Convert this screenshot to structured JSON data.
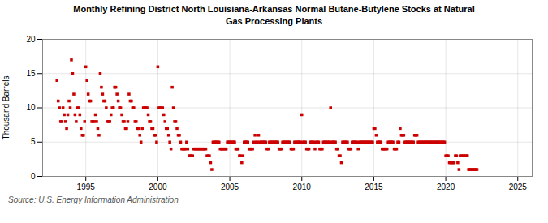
{
  "chart_data": {
    "type": "scatter",
    "title": "Monthly Refining District North Louisiana-Arkansas Normal Butane-Butylene Stocks at Natural\nGas Processing Plants",
    "y_label": "Thousand Barrels",
    "annotations": [
      "Source: U.S. Energy Information Administration"
    ],
    "color": "#cc0000",
    "marker": "square",
    "grid": true,
    "xlim": [
      1992.0,
      2026.0
    ],
    "ylim": [
      0,
      20
    ],
    "xticks": [
      1995,
      2000,
      2005,
      2010,
      2015,
      2020,
      2025
    ],
    "yticks": [
      0,
      5,
      10,
      15,
      20
    ],
    "x": [
      1993.0,
      1993.083,
      1993.167,
      1993.25,
      1993.333,
      1993.417,
      1993.5,
      1993.583,
      1993.667,
      1993.75,
      1993.833,
      1993.917,
      1994.0,
      1994.083,
      1994.167,
      1994.25,
      1994.333,
      1994.417,
      1994.5,
      1994.583,
      1994.667,
      1994.75,
      1994.833,
      1994.917,
      1995.0,
      1995.083,
      1995.167,
      1995.25,
      1995.333,
      1995.417,
      1995.5,
      1995.583,
      1995.667,
      1995.75,
      1995.833,
      1995.917,
      1996.0,
      1996.083,
      1996.167,
      1996.25,
      1996.333,
      1996.417,
      1996.5,
      1996.583,
      1996.667,
      1996.75,
      1996.833,
      1996.917,
      1997.0,
      1997.083,
      1997.167,
      1997.25,
      1997.333,
      1997.417,
      1997.5,
      1997.583,
      1997.667,
      1997.75,
      1997.833,
      1997.917,
      1998.0,
      1998.083,
      1998.167,
      1998.25,
      1998.333,
      1998.417,
      1998.5,
      1998.583,
      1998.667,
      1998.75,
      1998.833,
      1998.917,
      1999.0,
      1999.083,
      1999.167,
      1999.25,
      1999.333,
      1999.417,
      1999.5,
      1999.583,
      1999.667,
      1999.75,
      1999.833,
      1999.917,
      2000.0,
      2000.083,
      2000.167,
      2000.25,
      2000.333,
      2000.417,
      2000.5,
      2000.583,
      2000.667,
      2000.75,
      2000.833,
      2000.917,
      2001.0,
      2001.083,
      2001.167,
      2001.25,
      2001.333,
      2001.417,
      2001.5,
      2001.583,
      2001.667,
      2001.75,
      2001.833,
      2001.917,
      2002.0,
      2002.083,
      2002.167,
      2002.25,
      2002.333,
      2002.417,
      2002.5,
      2002.583,
      2002.667,
      2002.75,
      2002.833,
      2002.917,
      2003.0,
      2003.083,
      2003.167,
      2003.25,
      2003.333,
      2003.417,
      2003.5,
      2003.583,
      2003.667,
      2003.75,
      2003.833,
      2003.917,
      2004.0,
      2004.083,
      2004.167,
      2004.25,
      2004.333,
      2004.417,
      2004.5,
      2004.583,
      2004.667,
      2004.75,
      2004.833,
      2004.917,
      2005.0,
      2005.083,
      2005.167,
      2005.25,
      2005.333,
      2005.417,
      2005.5,
      2005.583,
      2005.667,
      2005.75,
      2005.833,
      2005.917,
      2006.0,
      2006.083,
      2006.167,
      2006.25,
      2006.333,
      2006.417,
      2006.5,
      2006.583,
      2006.667,
      2006.75,
      2006.833,
      2006.917,
      2007.0,
      2007.083,
      2007.167,
      2007.25,
      2007.333,
      2007.417,
      2007.5,
      2007.583,
      2007.667,
      2007.75,
      2007.833,
      2007.917,
      2008.0,
      2008.083,
      2008.167,
      2008.25,
      2008.333,
      2008.417,
      2008.5,
      2008.583,
      2008.667,
      2008.75,
      2008.833,
      2008.917,
      2009.0,
      2009.083,
      2009.167,
      2009.25,
      2009.333,
      2009.417,
      2009.5,
      2009.583,
      2009.667,
      2009.75,
      2009.833,
      2009.917,
      2010.0,
      2010.083,
      2010.167,
      2010.25,
      2010.333,
      2010.417,
      2010.5,
      2010.583,
      2010.667,
      2010.75,
      2010.833,
      2010.917,
      2011.0,
      2011.083,
      2011.167,
      2011.25,
      2011.333,
      2011.417,
      2011.5,
      2011.583,
      2011.667,
      2011.75,
      2011.833,
      2011.917,
      2012.0,
      2012.083,
      2012.167,
      2012.25,
      2012.333,
      2012.417,
      2012.5,
      2012.583,
      2012.667,
      2012.75,
      2012.833,
      2012.917,
      2013.0,
      2013.083,
      2013.167,
      2013.25,
      2013.333,
      2013.417,
      2013.5,
      2013.583,
      2013.667,
      2013.75,
      2013.833,
      2013.917,
      2014.0,
      2014.083,
      2014.167,
      2014.25,
      2014.333,
      2014.417,
      2014.5,
      2014.583,
      2014.667,
      2014.75,
      2014.833,
      2014.917,
      2015.0,
      2015.083,
      2015.167,
      2015.25,
      2015.333,
      2015.417,
      2015.5,
      2015.583,
      2015.667,
      2015.75,
      2015.833,
      2015.917,
      2016.0,
      2016.083,
      2016.167,
      2016.25,
      2016.333,
      2016.417,
      2016.5,
      2016.583,
      2016.667,
      2016.75,
      2016.833,
      2016.917,
      2017.0,
      2017.083,
      2017.167,
      2017.25,
      2017.333,
      2017.417,
      2017.5,
      2017.583,
      2017.667,
      2017.75,
      2017.833,
      2017.917,
      2018.0,
      2018.083,
      2018.167,
      2018.25,
      2018.333,
      2018.417,
      2018.5,
      2018.583,
      2018.667,
      2018.75,
      2018.833,
      2018.917,
      2019.0,
      2019.083,
      2019.167,
      2019.25,
      2019.333,
      2019.417,
      2019.5,
      2019.583,
      2019.667,
      2019.75,
      2019.833,
      2019.917,
      2020.0,
      2020.083,
      2020.167,
      2020.25,
      2020.333,
      2020.417,
      2020.5,
      2020.583,
      2020.667,
      2020.75,
      2020.833,
      2020.917,
      2021.0,
      2021.083,
      2021.167,
      2021.25,
      2021.333,
      2021.417,
      2021.5,
      2021.583,
      2021.667,
      2021.75,
      2021.833,
      2021.917,
      2022.0,
      2022.083,
      2022.167
    ],
    "values": [
      14,
      11,
      10,
      8,
      8,
      10,
      9,
      8,
      7,
      9,
      11,
      10,
      17,
      15,
      12,
      9,
      8,
      10,
      10,
      9,
      7,
      6,
      6,
      8,
      16,
      14,
      12,
      11,
      11,
      8,
      8,
      8,
      9,
      8,
      7,
      6,
      15,
      13,
      12,
      11,
      11,
      10,
      8,
      8,
      8,
      9,
      10,
      10,
      13,
      13,
      12,
      11,
      10,
      10,
      9,
      8,
      8,
      7,
      7,
      8,
      12,
      11,
      11,
      10,
      10,
      8,
      8,
      7,
      7,
      6,
      5,
      7,
      10,
      10,
      10,
      10,
      9,
      8,
      8,
      7,
      7,
      6,
      6,
      5,
      16,
      10,
      10,
      10,
      10,
      9,
      8,
      7,
      7,
      6,
      5,
      4,
      13,
      10,
      8,
      8,
      7,
      6,
      6,
      5,
      4,
      4,
      4,
      4,
      5,
      4,
      3,
      3,
      3,
      3,
      4,
      4,
      4,
      4,
      4,
      4,
      4,
      4,
      4,
      4,
      4,
      3,
      3,
      3,
      2,
      1,
      5,
      5,
      5,
      5,
      5,
      5,
      4,
      4,
      4,
      4,
      4,
      4,
      5,
      5,
      5,
      5,
      5,
      5,
      5,
      4,
      4,
      4,
      3,
      3,
      2,
      3,
      5,
      5,
      5,
      5,
      4,
      4,
      4,
      4,
      5,
      6,
      5,
      5,
      6,
      5,
      5,
      5,
      5,
      5,
      5,
      4,
      4,
      5,
      5,
      5,
      5,
      5,
      5,
      5,
      5,
      4,
      4,
      4,
      5,
      5,
      5,
      5,
      5,
      5,
      5,
      4,
      4,
      4,
      5,
      5,
      5,
      5,
      5,
      5,
      9,
      5,
      5,
      5,
      4,
      4,
      4,
      5,
      5,
      5,
      5,
      4,
      5,
      5,
      5,
      4,
      4,
      4,
      5,
      5,
      5,
      5,
      5,
      5,
      10,
      5,
      5,
      5,
      5,
      4,
      4,
      3,
      3,
      2,
      5,
      5,
      5,
      5,
      5,
      4,
      4,
      4,
      5,
      5,
      5,
      5,
      5,
      4,
      5,
      5,
      5,
      5,
      5,
      5,
      5,
      5,
      5,
      5,
      5,
      5,
      7,
      7,
      6,
      5,
      5,
      5,
      5,
      4,
      4,
      4,
      4,
      4,
      5,
      5,
      5,
      5,
      5,
      4,
      4,
      4,
      5,
      5,
      7,
      6,
      6,
      6,
      5,
      5,
      5,
      5,
      5,
      5,
      5,
      5,
      6,
      6,
      6,
      5,
      5,
      5,
      5,
      5,
      5,
      5,
      5,
      5,
      5,
      5,
      5,
      5,
      5,
      5,
      5,
      5,
      5,
      5,
      5,
      5,
      5,
      5,
      3,
      3,
      3,
      2,
      2,
      2,
      2,
      2,
      3,
      3,
      2,
      1,
      3,
      3,
      3,
      3,
      3,
      3,
      3,
      1,
      1,
      1,
      1,
      1,
      1,
      1,
      1
    ]
  }
}
